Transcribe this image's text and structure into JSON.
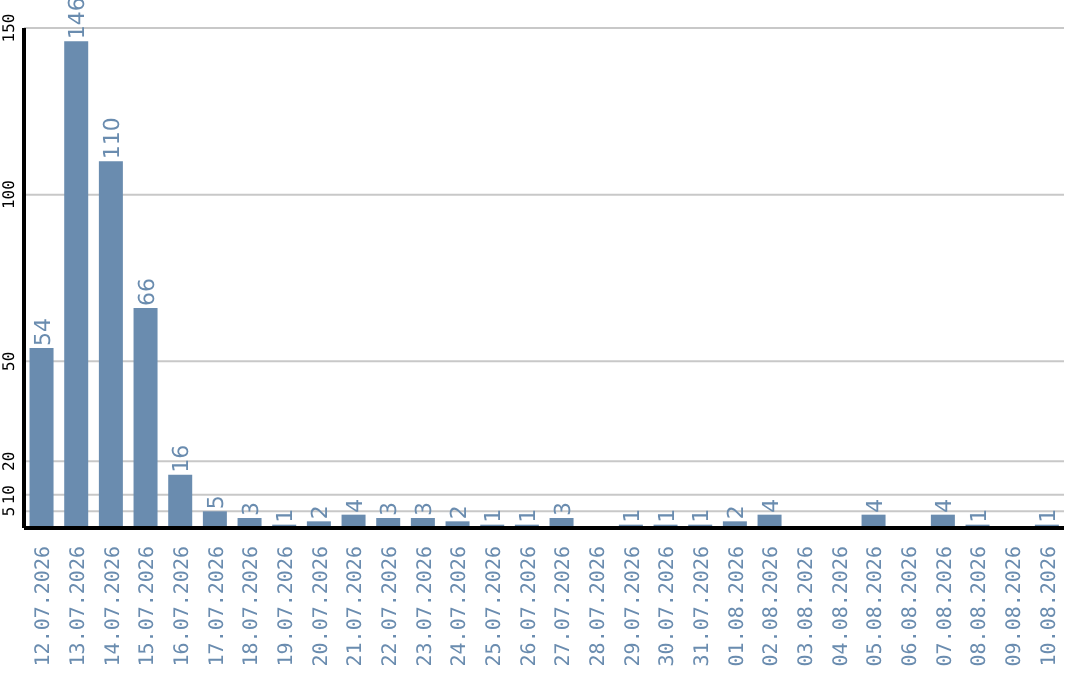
{
  "chart_data": {
    "type": "bar",
    "categories": [
      "12.07.2026",
      "13.07.2026",
      "14.07.2026",
      "15.07.2026",
      "16.07.2026",
      "17.07.2026",
      "18.07.2026",
      "19.07.2026",
      "20.07.2026",
      "21.07.2026",
      "22.07.2026",
      "23.07.2026",
      "24.07.2026",
      "25.07.2026",
      "26.07.2026",
      "27.07.2026",
      "28.07.2026",
      "29.07.2026",
      "30.07.2026",
      "31.07.2026",
      "01.08.2026",
      "02.08.2026",
      "03.08.2026",
      "04.08.2026",
      "05.08.2026",
      "06.08.2026",
      "07.08.2026",
      "08.08.2026",
      "09.08.2026",
      "10.08.2026"
    ],
    "values": [
      54,
      146,
      110,
      66,
      16,
      5,
      3,
      1,
      2,
      4,
      3,
      3,
      2,
      1,
      1,
      3,
      null,
      1,
      1,
      1,
      2,
      4,
      null,
      null,
      4,
      null,
      4,
      1,
      null,
      1
    ],
    "color": "#6a8caf",
    "ylim": [
      0,
      150
    ],
    "yticks": [
      5,
      10,
      20,
      50,
      100,
      150
    ],
    "grid": "y",
    "data_labels": true
  }
}
